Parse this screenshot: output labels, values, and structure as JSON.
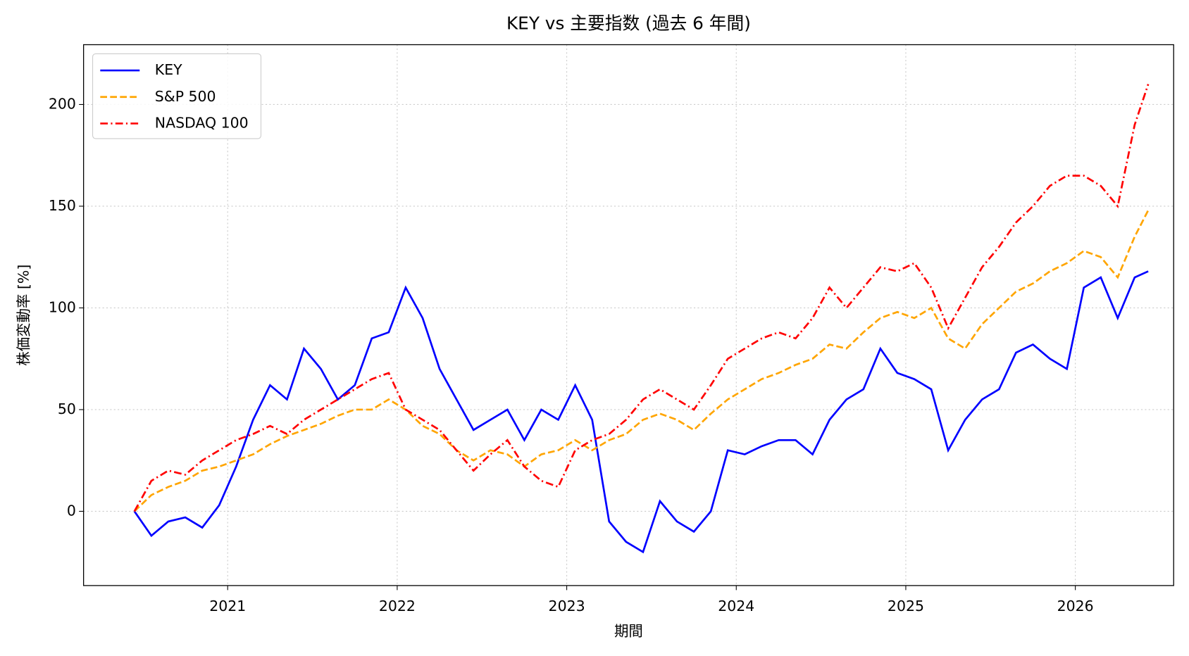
{
  "chart_data": {
    "type": "line",
    "title": "KEY vs 主要指数 (過去 6 年間)",
    "xlabel": "期間",
    "ylabel": "株価変動率 [%]",
    "x": [
      2020.45,
      2020.55,
      2020.65,
      2020.75,
      2020.85,
      2020.95,
      2021.05,
      2021.15,
      2021.25,
      2021.35,
      2021.45,
      2021.55,
      2021.65,
      2021.75,
      2021.85,
      2021.95,
      2022.05,
      2022.15,
      2022.25,
      2022.35,
      2022.45,
      2022.55,
      2022.65,
      2022.75,
      2022.85,
      2022.95,
      2023.05,
      2023.15,
      2023.25,
      2023.35,
      2023.45,
      2023.55,
      2023.65,
      2023.75,
      2023.85,
      2023.95,
      2024.05,
      2024.15,
      2024.25,
      2024.35,
      2024.45,
      2024.55,
      2024.65,
      2024.75,
      2024.85,
      2024.95,
      2025.05,
      2025.15,
      2025.25,
      2025.35,
      2025.45,
      2025.55,
      2025.65,
      2025.75,
      2025.85,
      2025.95,
      2026.05,
      2026.15,
      2026.25,
      2026.35,
      2026.43
    ],
    "series": [
      {
        "name": "KEY",
        "color": "#0000ff",
        "linestyle": "solid",
        "values": [
          0,
          -12,
          -5,
          -3,
          -8,
          3,
          22,
          45,
          62,
          55,
          80,
          70,
          55,
          62,
          85,
          88,
          110,
          95,
          70,
          55,
          40,
          45,
          50,
          35,
          50,
          45,
          62,
          45,
          -5,
          -15,
          -20,
          5,
          -5,
          -10,
          0,
          30,
          28,
          32,
          35,
          35,
          28,
          45,
          55,
          60,
          80,
          68,
          65,
          60,
          30,
          45,
          55,
          60,
          78,
          82,
          75,
          70,
          110,
          115,
          95,
          115,
          118
        ]
      },
      {
        "name": "S&P 500",
        "color": "#ffa500",
        "linestyle": "dashed",
        "values": [
          0,
          8,
          12,
          15,
          20,
          22,
          25,
          28,
          33,
          37,
          40,
          43,
          47,
          50,
          50,
          55,
          50,
          42,
          38,
          30,
          25,
          30,
          28,
          22,
          28,
          30,
          35,
          30,
          35,
          38,
          45,
          48,
          45,
          40,
          48,
          55,
          60,
          65,
          68,
          72,
          75,
          82,
          80,
          88,
          95,
          98,
          95,
          100,
          85,
          80,
          92,
          100,
          108,
          112,
          118,
          122,
          128,
          125,
          115,
          135,
          148
        ]
      },
      {
        "name": "NASDAQ 100",
        "color": "#ff0000",
        "linestyle": "dashdot",
        "values": [
          0,
          15,
          20,
          18,
          25,
          30,
          35,
          38,
          42,
          38,
          45,
          50,
          55,
          60,
          65,
          68,
          50,
          45,
          40,
          30,
          20,
          28,
          35,
          22,
          15,
          12,
          30,
          35,
          38,
          45,
          55,
          60,
          55,
          50,
          62,
          75,
          80,
          85,
          88,
          85,
          95,
          110,
          100,
          110,
          120,
          118,
          122,
          110,
          90,
          105,
          120,
          130,
          142,
          150,
          160,
          165,
          165,
          160,
          150,
          190,
          210
        ]
      }
    ],
    "xlim": [
      2020.15,
      2026.58
    ],
    "xticks": [
      2021,
      2022,
      2023,
      2024,
      2025,
      2026
    ],
    "ylim": [
      -36.5,
      229.4
    ],
    "yticks": [
      0,
      50,
      100,
      150,
      200
    ],
    "grid": true,
    "legend": "upper left"
  }
}
